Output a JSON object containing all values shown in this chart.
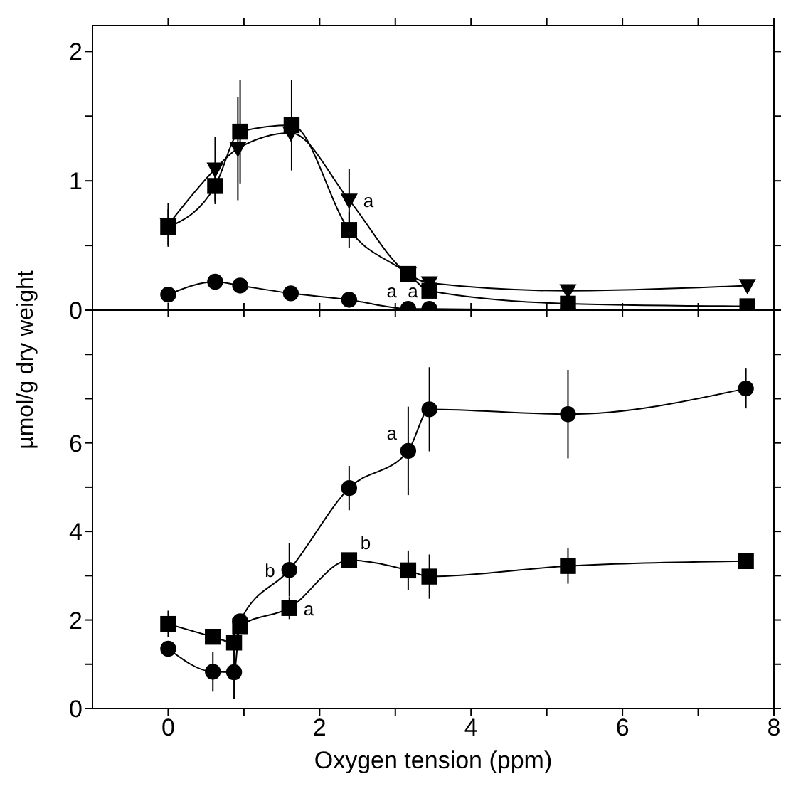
{
  "chart_data": [
    {
      "type": "line",
      "ylabel": "µmol/g dry weight",
      "xlim": [
        -1,
        8
      ],
      "xticks": [
        0,
        {
          "value": 1,
          "label": null
        },
        2,
        {
          "value": 3,
          "label": null
        },
        4,
        {
          "value": 5,
          "label": null
        },
        6,
        {
          "value": 7,
          "label": null
        },
        8
      ],
      "ylim": [
        0,
        2.2
      ],
      "yticks": [
        0,
        {
          "value": 0.5,
          "label": null
        },
        1,
        {
          "value": 1.5,
          "label": null
        },
        2
      ],
      "tick_labels": "y",
      "line_style": "solid",
      "series": [
        {
          "color": "#000000",
          "marker": "triangle",
          "x": [
            0,
            0.62,
            0.92,
            1.62,
            2.39,
            3.17,
            3.45,
            5.28,
            7.65
          ],
          "values": [
            0.66,
            1.09,
            1.25,
            1.37,
            0.85,
            0.28,
            0.21,
            0.15,
            0.19
          ],
          "errors": [
            0.17,
            0.25,
            0.4,
            null,
            0.24,
            null,
            null,
            null,
            null
          ]
        },
        {
          "color": "#000000",
          "marker": "square",
          "x": [
            0,
            0.62,
            0.95,
            1.63,
            2.39,
            3.17,
            3.45,
            5.28,
            7.65
          ],
          "values": [
            0.64,
            0.96,
            1.38,
            1.43,
            0.62,
            0.28,
            0.15,
            0.05,
            0.03
          ],
          "errors": [
            0.14,
            0.14,
            0.4,
            0.35,
            0.14,
            null,
            null,
            null,
            null
          ]
        },
        {
          "color": "#000000",
          "marker": "circle",
          "x": [
            0,
            0.62,
            0.95,
            1.62,
            2.39,
            3.17,
            3.45,
            5.28,
            7.65
          ],
          "values": [
            0.12,
            0.22,
            0.19,
            0.13,
            0.08,
            0.01,
            0.01,
            0,
            0
          ]
        }
      ],
      "annotations": [
        {
          "text": "a",
          "x": 2.39,
          "y": 0.85
        },
        {
          "text": "a",
          "x": 3.17,
          "y": 0.01
        },
        {
          "text": "a",
          "x": 3.45,
          "y": 0.01
        }
      ]
    },
    {
      "type": "line",
      "xlabel": "Oxygen tension (ppm)",
      "xlim": [
        -1,
        8
      ],
      "xticks": [
        0,
        {
          "value": 1,
          "label": null
        },
        2,
        {
          "value": 3,
          "label": null
        },
        4,
        {
          "value": 5,
          "label": null
        },
        6,
        {
          "value": 7,
          "label": null
        },
        8
      ],
      "ylim": [
        0,
        9
      ],
      "yticks": [
        0,
        {
          "value": 1,
          "label": null
        },
        2,
        {
          "value": 3,
          "label": null
        },
        4,
        {
          "value": 5,
          "label": null
        },
        6,
        {
          "value": 7,
          "label": null
        },
        {
          "value": 8,
          "label": null
        }
      ],
      "line_style": "solid",
      "series": [
        {
          "color": "#000000",
          "marker": "circle",
          "x": [
            0,
            0.59,
            0.87,
            0.95,
            1.6,
            2.39,
            3.17,
            3.45,
            5.28,
            7.63
          ],
          "values": [
            1.35,
            0.83,
            0.82,
            1.97,
            3.13,
            4.98,
            5.82,
            6.76,
            6.65,
            7.23
          ],
          "errors": [
            null,
            0.45,
            0.6,
            null,
            0.6,
            0.5,
            1.0,
            0.95,
            1.0,
            0.45
          ]
        },
        {
          "color": "#000000",
          "marker": "square",
          "x": [
            0,
            0.59,
            0.87,
            0.95,
            1.6,
            2.39,
            3.17,
            3.45,
            5.28,
            7.63
          ],
          "values": [
            1.91,
            1.62,
            1.49,
            1.86,
            2.27,
            3.35,
            3.12,
            2.98,
            3.22,
            3.33
          ],
          "errors": [
            0.3,
            null,
            0.3,
            null,
            0.25,
            null,
            0.45,
            0.5,
            0.4,
            null
          ]
        }
      ],
      "annotations": [
        {
          "text": "b",
          "x": 1.6,
          "y": 3.13
        },
        {
          "text": "a",
          "x": 1.6,
          "y": 2.27
        },
        {
          "text": "b",
          "x": 2.39,
          "y": 3.35
        },
        {
          "text": "a",
          "x": 3.17,
          "y": 5.82
        }
      ]
    }
  ]
}
